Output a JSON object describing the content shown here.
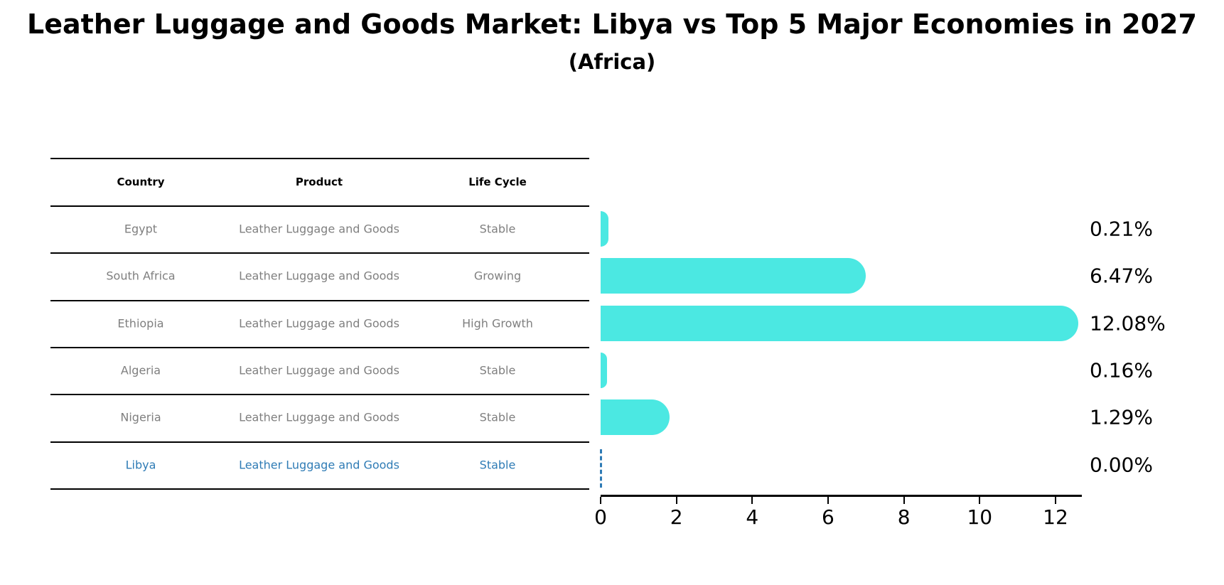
{
  "title": "Leather Luggage and Goods Market: Libya vs Top 5 Major Economies in 2027",
  "subtitle": "(Africa)",
  "table": {
    "headers": [
      "Country",
      "Product",
      "Life Cycle"
    ],
    "rows": [
      {
        "country": "Egypt",
        "product": "Leather Luggage and Goods",
        "life_cycle": "Stable",
        "highlight": false
      },
      {
        "country": "South Africa",
        "product": "Leather Luggage and Goods",
        "life_cycle": "Growing",
        "highlight": false
      },
      {
        "country": "Ethiopia",
        "product": "Leather Luggage and Goods",
        "life_cycle": "High Growth",
        "highlight": false
      },
      {
        "country": "Algeria",
        "product": "Leather Luggage and Goods",
        "life_cycle": "Stable",
        "highlight": false
      },
      {
        "country": "Nigeria",
        "product": "Leather Luggage and Goods",
        "life_cycle": "Stable",
        "highlight": true,
        "highlight_note": ""
      },
      {
        "country": "Libya",
        "product": "Leather Luggage and Goods",
        "life_cycle": "Stable",
        "highlight": true
      }
    ]
  },
  "chart_data": {
    "type": "bar",
    "orientation": "horizontal",
    "title": "Leather Luggage and Goods Market: Libya vs Top 5 Major Economies in 2027",
    "subtitle": "(Africa)",
    "categories": [
      "Egypt",
      "South Africa",
      "Ethiopia",
      "Algeria",
      "Nigeria",
      "Libya"
    ],
    "values": [
      0.21,
      6.47,
      12.08,
      0.16,
      1.29,
      0.0
    ],
    "value_labels": [
      "0.21%",
      "6.47%",
      "12.08%",
      "0.16%",
      "1.29%",
      "0.00%"
    ],
    "x_ticks": [
      0,
      2,
      4,
      6,
      8,
      10,
      12
    ],
    "xlim": [
      0,
      12.7
    ],
    "xlabel": "",
    "ylabel": "",
    "grid": false,
    "legend": "none",
    "bar_color": "#4be8e2",
    "highlight_index": 5,
    "highlight_color": "#2e7bb5",
    "highlight_style": "dashed-zero-line"
  },
  "colors": {
    "background": "#ffffff",
    "bar": "#4be8e2",
    "highlight": "#2e7bb5",
    "table_text": "#7f7f7f",
    "axis": "#000000"
  }
}
